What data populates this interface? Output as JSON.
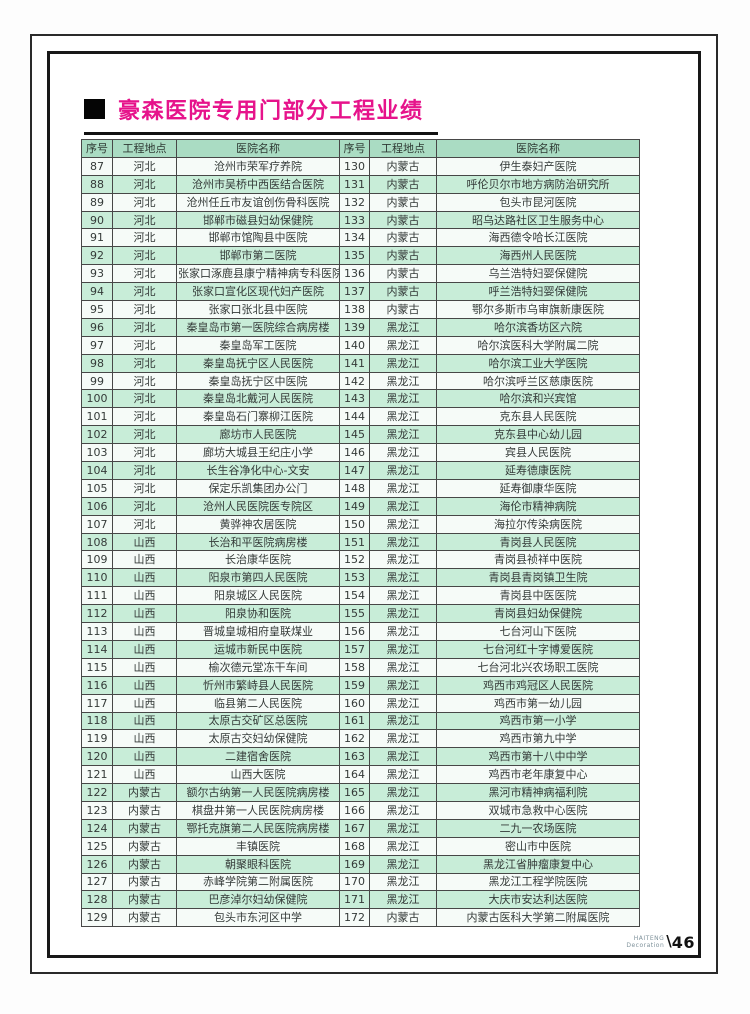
{
  "page": {
    "title": "豪森医院专用门部分工程业绩",
    "footer": {
      "brand_line1": "HAITENG",
      "brand_line2": "Decoration",
      "slash": "\\",
      "page_number": "46"
    }
  },
  "colors": {
    "title": "#e6138b",
    "header_bg": "#aadcc3",
    "row_green": "#c8edd8",
    "row_white": "#f6fbf8",
    "border": "#474747"
  },
  "table": {
    "headers": [
      "序号",
      "工程地点",
      "医院名称",
      "序号",
      "工程地点",
      "医院名称"
    ],
    "left_rows": [
      [
        "87",
        "河北",
        "沧州市荣军疗养院"
      ],
      [
        "88",
        "河北",
        "沧州市吴桥中西医结合医院"
      ],
      [
        "89",
        "河北",
        "沧州任丘市友谊创伤骨科医院"
      ],
      [
        "90",
        "河北",
        "邯郸市磁县妇幼保健院"
      ],
      [
        "91",
        "河北",
        "邯郸市馆陶县中医院"
      ],
      [
        "92",
        "河北",
        "邯郸市第二医院"
      ],
      [
        "93",
        "河北",
        "张家口涿鹿县康宁精神病专科医院"
      ],
      [
        "94",
        "河北",
        "张家口宣化区现代妇产医院"
      ],
      [
        "95",
        "河北",
        "张家口张北县中医院"
      ],
      [
        "96",
        "河北",
        "秦皇岛市第一医院综合病房楼"
      ],
      [
        "97",
        "河北",
        "秦皇岛军工医院"
      ],
      [
        "98",
        "河北",
        "秦皇岛抚宁区人民医院"
      ],
      [
        "99",
        "河北",
        "秦皇岛抚宁区中医院"
      ],
      [
        "100",
        "河北",
        "秦皇岛北戴河人民医院"
      ],
      [
        "101",
        "河北",
        "秦皇岛石门寨柳江医院"
      ],
      [
        "102",
        "河北",
        "廊坊市人民医院"
      ],
      [
        "103",
        "河北",
        "廊坊大城县王纪庄小学"
      ],
      [
        "104",
        "河北",
        "长生谷净化中心-文安"
      ],
      [
        "105",
        "河北",
        "保定乐凯集团办公门"
      ],
      [
        "106",
        "河北",
        "沧州人民医院医专院区"
      ],
      [
        "107",
        "河北",
        "黄骅神农居医院"
      ],
      [
        "108",
        "山西",
        "长治和平医院病房楼"
      ],
      [
        "109",
        "山西",
        "长治康华医院"
      ],
      [
        "110",
        "山西",
        "阳泉市第四人民医院"
      ],
      [
        "111",
        "山西",
        "阳泉城区人民医院"
      ],
      [
        "112",
        "山西",
        "阳泉协和医院"
      ],
      [
        "113",
        "山西",
        "晋城皇城相府皇联煤业"
      ],
      [
        "114",
        "山西",
        "运城市新民中医院"
      ],
      [
        "115",
        "山西",
        "榆次德元堂冻干车间"
      ],
      [
        "116",
        "山西",
        "忻州市繁峙县人民医院"
      ],
      [
        "117",
        "山西",
        "临县第二人民医院"
      ],
      [
        "118",
        "山西",
        "太原古交矿区总医院"
      ],
      [
        "119",
        "山西",
        "太原古交妇幼保健院"
      ],
      [
        "120",
        "山西",
        "二建宿舍医院"
      ],
      [
        "121",
        "山西",
        "山西大医院"
      ],
      [
        "122",
        "内蒙古",
        "额尔古纳第一人民医院病房楼"
      ],
      [
        "123",
        "内蒙古",
        "棋盘井第一人民医院病房楼"
      ],
      [
        "124",
        "内蒙古",
        "鄂托克旗第二人民医院病房楼"
      ],
      [
        "125",
        "内蒙古",
        "丰镇医院"
      ],
      [
        "126",
        "内蒙古",
        "朝聚眼科医院"
      ],
      [
        "127",
        "内蒙古",
        "赤峰学院第二附属医院"
      ],
      [
        "128",
        "内蒙古",
        "巴彦淖尔妇幼保健院"
      ],
      [
        "129",
        "内蒙古",
        "包头市东河区中学"
      ]
    ],
    "right_rows": [
      [
        "130",
        "内蒙古",
        "伊生泰妇产医院"
      ],
      [
        "131",
        "内蒙古",
        "呼伦贝尔市地方病防治研究所"
      ],
      [
        "132",
        "内蒙古",
        "包头市昆河医院"
      ],
      [
        "133",
        "内蒙古",
        "昭乌达路社区卫生服务中心"
      ],
      [
        "134",
        "内蒙古",
        "海西德令哈长江医院"
      ],
      [
        "135",
        "内蒙古",
        "海西州人民医院"
      ],
      [
        "136",
        "内蒙古",
        "乌兰浩特妇婴保健院"
      ],
      [
        "137",
        "内蒙古",
        "呼兰浩特妇婴保健院"
      ],
      [
        "138",
        "内蒙古",
        "鄂尔多斯市乌审旗新康医院"
      ],
      [
        "139",
        "黑龙江",
        "哈尔滨香坊区六院"
      ],
      [
        "140",
        "黑龙江",
        "哈尔滨医科大学附属二院"
      ],
      [
        "141",
        "黑龙江",
        "哈尔滨工业大学医院"
      ],
      [
        "142",
        "黑龙江",
        "哈尔滨呼兰区慈康医院"
      ],
      [
        "143",
        "黑龙江",
        "哈尔滨和兴宾馆"
      ],
      [
        "144",
        "黑龙江",
        "克东县人民医院"
      ],
      [
        "145",
        "黑龙江",
        "克东县中心幼儿园"
      ],
      [
        "146",
        "黑龙江",
        "宾县人民医院"
      ],
      [
        "147",
        "黑龙江",
        "延寿德康医院"
      ],
      [
        "148",
        "黑龙江",
        "延寿御康华医院"
      ],
      [
        "149",
        "黑龙江",
        "海伦市精神病院"
      ],
      [
        "150",
        "黑龙江",
        "海拉尔传染病医院"
      ],
      [
        "151",
        "黑龙江",
        "青岗县人民医院"
      ],
      [
        "152",
        "黑龙江",
        "青岗县祯祥中医院"
      ],
      [
        "153",
        "黑龙江",
        "青岗县青岗镇卫生院"
      ],
      [
        "154",
        "黑龙江",
        "青岗县中医医院"
      ],
      [
        "155",
        "黑龙江",
        "青岗县妇幼保健院"
      ],
      [
        "156",
        "黑龙江",
        "七台河山下医院"
      ],
      [
        "157",
        "黑龙江",
        "七台河红十字博爱医院"
      ],
      [
        "158",
        "黑龙江",
        "七台河北兴农场职工医院"
      ],
      [
        "159",
        "黑龙江",
        "鸡西市鸡冠区人民医院"
      ],
      [
        "160",
        "黑龙江",
        "鸡西市第一幼儿园"
      ],
      [
        "161",
        "黑龙江",
        "鸡西市第一小学"
      ],
      [
        "162",
        "黑龙江",
        "鸡西市第九中学"
      ],
      [
        "163",
        "黑龙江",
        "鸡西市第十八中中学"
      ],
      [
        "164",
        "黑龙江",
        "鸡西市老年康复中心"
      ],
      [
        "165",
        "黑龙江",
        "黑河市精神病福利院"
      ],
      [
        "166",
        "黑龙江",
        "双城市急救中心医院"
      ],
      [
        "167",
        "黑龙江",
        "二九一农场医院"
      ],
      [
        "168",
        "黑龙江",
        "密山市中医院"
      ],
      [
        "169",
        "黑龙江",
        "黑龙江省肿瘤康复中心"
      ],
      [
        "170",
        "黑龙江",
        "黑龙江工程学院医院"
      ],
      [
        "171",
        "黑龙江",
        "大庆市安达利达医院"
      ],
      [
        "172",
        "内蒙古",
        "内蒙古医科大学第二附属医院"
      ]
    ]
  }
}
